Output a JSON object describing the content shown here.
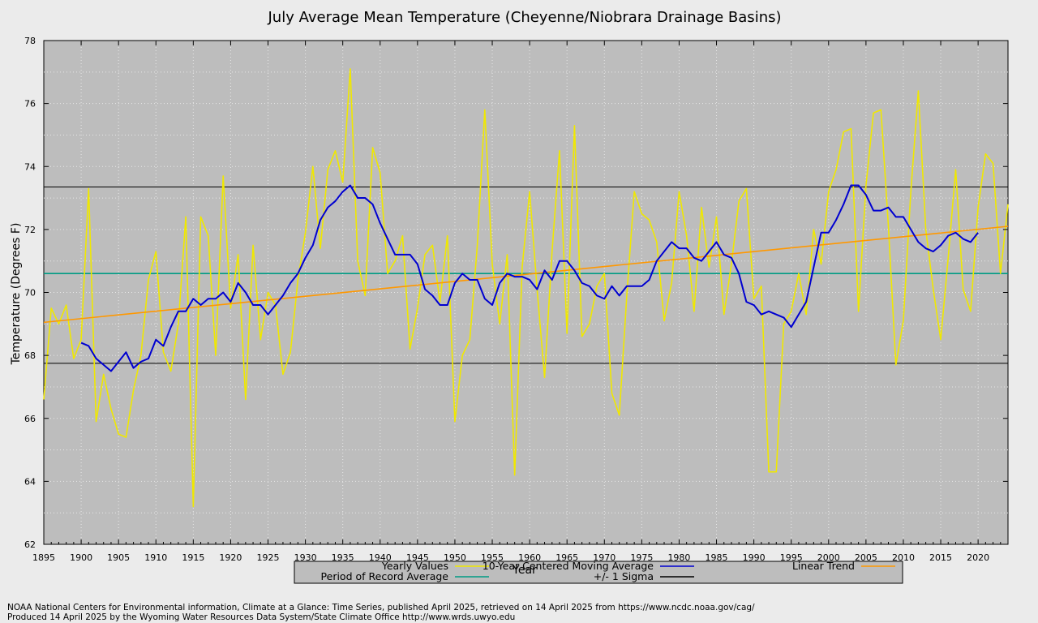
{
  "colors": {
    "background": "#ebebeb",
    "plot_area": "#bdbdbd",
    "yearly": "#f0e800",
    "moving_average": "#0000d0",
    "trend": "#ff9800",
    "por_average": "#009c84",
    "sigma": "#000000"
  },
  "footer": {
    "line1": "NOAA National Centers for Environmental information, Climate at a Glance: Time Series, published April 2025, retrieved on 14 April 2025 from https://www.ncdc.noaa.gov/cag/",
    "line2": "Produced 14 April 2025 by the Wyoming Water Resources Data System/State Climate Office http://www.wrds.uwyo.edu"
  },
  "chart_data": {
    "type": "line",
    "title": "July Average Mean Temperature (Cheyenne/Niobrara Drainage Basins)",
    "xlabel": "Year",
    "ylabel": "Temperature (Degrees F)",
    "xlim": [
      1895,
      2024
    ],
    "ylim": [
      62,
      78
    ],
    "xticks": [
      1895,
      1900,
      1905,
      1910,
      1915,
      1920,
      1925,
      1930,
      1935,
      1940,
      1945,
      1950,
      1955,
      1960,
      1965,
      1970,
      1975,
      1980,
      1985,
      1990,
      1995,
      2000,
      2005,
      2010,
      2015,
      2020
    ],
    "yticks": [
      62,
      64,
      66,
      68,
      70,
      72,
      74,
      76,
      78
    ],
    "grid": true,
    "legend_position": "bottom-center",
    "period_of_record_average": 70.6,
    "sigma_upper": 73.35,
    "sigma_lower": 67.75,
    "series": [
      {
        "name": "Yearly Values",
        "x_start": 1895,
        "values": [
          66.6,
          69.5,
          69.0,
          69.6,
          67.9,
          68.5,
          73.3,
          65.9,
          67.4,
          66.3,
          65.5,
          65.4,
          66.9,
          68.0,
          70.4,
          71.3,
          68.1,
          67.5,
          69.0,
          72.4,
          63.2,
          72.4,
          71.8,
          68.0,
          73.7,
          69.5,
          71.2,
          66.6,
          71.5,
          68.5,
          70.0,
          69.6,
          67.4,
          68.1,
          70.4,
          71.9,
          74.0,
          71.4,
          73.9,
          74.5,
          73.5,
          77.1,
          71.0,
          69.9,
          74.6,
          73.8,
          70.6,
          71.0,
          71.8,
          68.2,
          69.5,
          71.2,
          71.5,
          69.7,
          71.8,
          65.9,
          68.0,
          68.5,
          71.5,
          75.8,
          70.9,
          69.0,
          71.2,
          64.2,
          70.8,
          73.2,
          70.1,
          67.3,
          71.3,
          74.5,
          68.7,
          75.3,
          68.6,
          69.0,
          70.2,
          70.6,
          66.8,
          66.1,
          69.9,
          73.2,
          72.5,
          72.3,
          71.6,
          69.1,
          70.3,
          73.2,
          71.8,
          69.4,
          72.7,
          70.8,
          72.4,
          69.3,
          70.9,
          72.9,
          73.3,
          69.8,
          70.2,
          64.3,
          64.3,
          69.0,
          69.4,
          70.6,
          69.3,
          72.0,
          70.9,
          73.2,
          73.9,
          75.1,
          75.2,
          69.4,
          73.4,
          75.7,
          75.8,
          72.1,
          67.7,
          69.1,
          73.2,
          76.4,
          72.0,
          70.1,
          68.5,
          71.1,
          73.9,
          70.1,
          69.4,
          72.7,
          74.4,
          74.1,
          70.6,
          72.8
        ]
      },
      {
        "name": "10-Year Centered Moving Average",
        "x_start": 1900,
        "values": [
          68.4,
          68.3,
          67.9,
          67.7,
          67.5,
          67.8,
          68.1,
          67.6,
          67.8,
          67.9,
          68.5,
          68.3,
          68.9,
          69.4,
          69.4,
          69.8,
          69.6,
          69.8,
          69.8,
          70.0,
          69.7,
          70.3,
          70.0,
          69.6,
          69.6,
          69.3,
          69.6,
          69.9,
          70.3,
          70.6,
          71.1,
          71.5,
          72.3,
          72.7,
          72.9,
          73.2,
          73.4,
          73.0,
          73.0,
          72.8,
          72.2,
          71.7,
          71.2,
          71.2,
          71.2,
          70.9,
          70.1,
          69.9,
          69.6,
          69.6,
          70.3,
          70.6,
          70.4,
          70.4,
          69.8,
          69.6,
          70.3,
          70.6,
          70.5,
          70.5,
          70.4,
          70.1,
          70.7,
          70.4,
          71.0,
          71.0,
          70.7,
          70.3,
          70.2,
          69.9,
          69.8,
          70.2,
          69.9,
          70.2,
          70.2,
          70.2,
          70.4,
          71.0,
          71.3,
          71.6,
          71.4,
          71.4,
          71.1,
          71.0,
          71.3,
          71.6,
          71.2,
          71.1,
          70.6,
          69.7,
          69.6,
          69.3,
          69.4,
          69.3,
          69.2,
          68.9,
          69.3,
          69.7,
          70.8,
          71.9,
          71.9,
          72.3,
          72.8,
          73.4,
          73.4,
          73.1,
          72.6,
          72.6,
          72.7,
          72.4,
          72.4,
          72.0,
          71.6,
          71.4,
          71.3,
          71.5,
          71.8,
          71.9,
          71.7,
          71.6,
          71.9
        ]
      },
      {
        "name": "Linear Trend",
        "x": [
          1895,
          2024
        ],
        "values": [
          69.05,
          72.1
        ]
      },
      {
        "name": "Period of Record Average",
        "x": [
          1895,
          2024
        ],
        "values": [
          70.6,
          70.6
        ]
      },
      {
        "name": "+/- 1 Sigma",
        "x": [
          1895,
          2024
        ],
        "values": [
          73.35,
          73.35
        ]
      }
    ]
  }
}
